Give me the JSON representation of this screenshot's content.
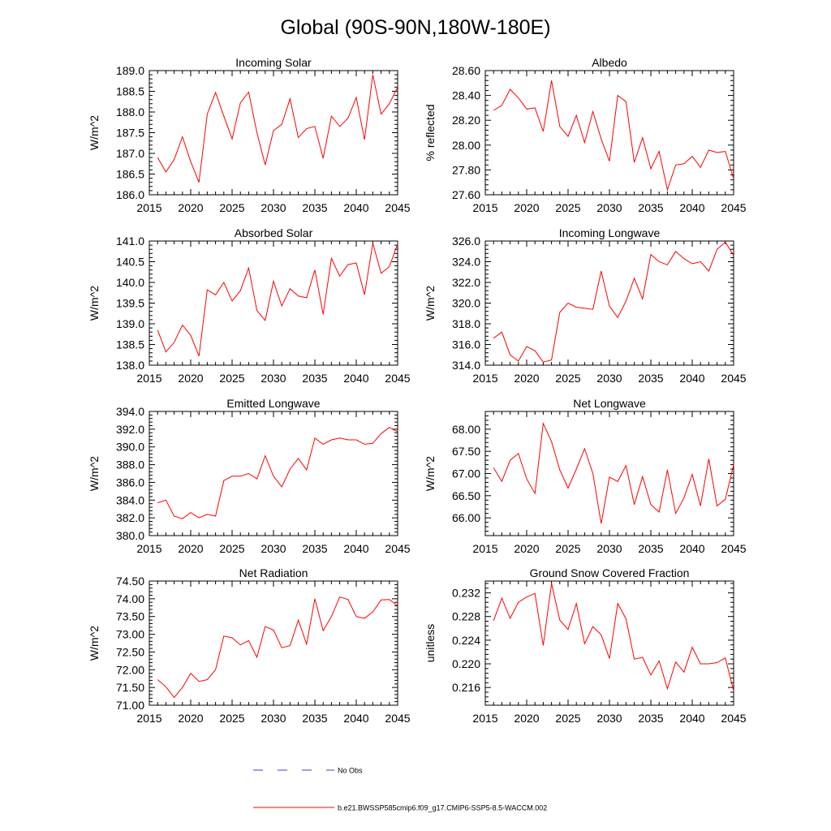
{
  "title": "Global (90S-90N,180W-180E)",
  "colors": {
    "series": "#ff0000",
    "obs": "#3b3bd6",
    "axis": "#000000"
  },
  "legend": {
    "obs_label": "No Obs",
    "model_label": "b.e21.BWSSP585cmip6.f09_g17.CMIP6-SSP5-8.5-WACCM.002"
  },
  "chart_data": [
    {
      "type": "line",
      "title": "Incoming Solar",
      "ylabel": "W/m^2",
      "xlabel": "",
      "xlim": [
        2015,
        2045
      ],
      "ylim": [
        186.0,
        189.0
      ],
      "xticks": [
        2015,
        2020,
        2025,
        2030,
        2035,
        2040,
        2045
      ],
      "yticks": [
        "186.0",
        "186.5",
        "187.0",
        "187.5",
        "188.0",
        "188.5",
        "189.0"
      ],
      "x": [
        2016,
        2017,
        2018,
        2019,
        2020,
        2021,
        2022,
        2023,
        2024,
        2025,
        2026,
        2027,
        2028,
        2029,
        2030,
        2031,
        2032,
        2033,
        2034,
        2035,
        2036,
        2037,
        2038,
        2039,
        2040,
        2041,
        2042,
        2043,
        2044,
        2045
      ],
      "series": [
        {
          "name": "b.e21.BWSSP585cmip6.f09_g17.CMIP6-SSP5-8.5-WACCM.002",
          "values": [
            186.9,
            186.55,
            186.85,
            187.4,
            186.8,
            186.3,
            187.95,
            188.47,
            187.9,
            187.35,
            188.22,
            188.48,
            187.5,
            186.72,
            187.55,
            187.7,
            188.32,
            187.38,
            187.6,
            187.65,
            186.88,
            187.9,
            187.65,
            187.85,
            188.35,
            187.33,
            188.9,
            187.95,
            188.2,
            188.6
          ]
        }
      ]
    },
    {
      "type": "line",
      "title": "Albedo",
      "ylabel": "% reflected",
      "xlabel": "",
      "xlim": [
        2015,
        2045
      ],
      "ylim": [
        27.6,
        28.6
      ],
      "xticks": [
        2015,
        2020,
        2025,
        2030,
        2035,
        2040,
        2045
      ],
      "yticks": [
        "27.60",
        "27.80",
        "28.00",
        "28.20",
        "28.40",
        "28.60"
      ],
      "x": [
        2016,
        2017,
        2018,
        2019,
        2020,
        2021,
        2022,
        2023,
        2024,
        2025,
        2026,
        2027,
        2028,
        2029,
        2030,
        2031,
        2032,
        2033,
        2034,
        2035,
        2036,
        2037,
        2038,
        2039,
        2040,
        2041,
        2042,
        2043,
        2044,
        2045
      ],
      "series": [
        {
          "name": "b.e21.BWSSP585cmip6.f09_g17.CMIP6-SSP5-8.5-WACCM.002",
          "values": [
            28.28,
            28.32,
            28.45,
            28.38,
            28.29,
            28.3,
            28.11,
            28.52,
            28.15,
            28.07,
            28.24,
            28.02,
            28.27,
            28.05,
            27.87,
            28.4,
            28.35,
            27.86,
            28.06,
            27.81,
            27.95,
            27.64,
            27.84,
            27.85,
            27.91,
            27.82,
            27.96,
            27.94,
            27.95,
            27.73
          ]
        }
      ]
    },
    {
      "type": "line",
      "title": "Absorbed Solar",
      "ylabel": "W/m^2",
      "xlabel": "",
      "xlim": [
        2015,
        2045
      ],
      "ylim": [
        138.0,
        141.0
      ],
      "xticks": [
        2015,
        2020,
        2025,
        2030,
        2035,
        2040,
        2045
      ],
      "yticks": [
        "138.0",
        "138.5",
        "139.0",
        "139.5",
        "140.0",
        "140.5",
        "141.0"
      ],
      "x": [
        2016,
        2017,
        2018,
        2019,
        2020,
        2021,
        2022,
        2023,
        2024,
        2025,
        2026,
        2027,
        2028,
        2029,
        2030,
        2031,
        2032,
        2033,
        2034,
        2035,
        2036,
        2037,
        2038,
        2039,
        2040,
        2041,
        2042,
        2043,
        2044,
        2045
      ],
      "series": [
        {
          "name": "b.e21.BWSSP585cmip6.f09_g17.CMIP6-SSP5-8.5-WACCM.002",
          "values": [
            138.85,
            138.32,
            138.55,
            138.97,
            138.72,
            138.22,
            139.82,
            139.7,
            140.0,
            139.55,
            139.8,
            140.35,
            139.32,
            139.08,
            140.03,
            139.43,
            139.85,
            139.67,
            139.63,
            140.3,
            139.23,
            140.58,
            140.15,
            140.43,
            140.47,
            139.7,
            140.95,
            140.22,
            140.38,
            140.93
          ]
        }
      ]
    },
    {
      "type": "line",
      "title": "Incoming Longwave",
      "ylabel": "W/m^2",
      "xlabel": "",
      "xlim": [
        2015,
        2045
      ],
      "ylim": [
        314.0,
        326.0
      ],
      "xticks": [
        2015,
        2020,
        2025,
        2030,
        2035,
        2040,
        2045
      ],
      "yticks": [
        "314.0",
        "316.0",
        "318.0",
        "320.0",
        "322.0",
        "324.0",
        "326.0"
      ],
      "x": [
        2016,
        2017,
        2018,
        2019,
        2020,
        2021,
        2022,
        2023,
        2024,
        2025,
        2026,
        2027,
        2028,
        2029,
        2030,
        2031,
        2032,
        2033,
        2034,
        2035,
        2036,
        2037,
        2038,
        2039,
        2040,
        2041,
        2042,
        2043,
        2044,
        2045
      ],
      "series": [
        {
          "name": "b.e21.BWSSP585cmip6.f09_g17.CMIP6-SSP5-8.5-WACCM.002",
          "values": [
            316.6,
            317.2,
            315.0,
            314.4,
            315.8,
            315.4,
            314.3,
            314.5,
            319.1,
            320.0,
            319.6,
            319.5,
            319.4,
            323.1,
            319.7,
            318.6,
            320.2,
            322.4,
            320.4,
            324.7,
            324.0,
            323.7,
            325.0,
            324.3,
            323.8,
            324.0,
            323.1,
            325.2,
            325.9,
            324.6
          ]
        }
      ]
    },
    {
      "type": "line",
      "title": "Emitted Longwave",
      "ylabel": "W/m^2",
      "xlabel": "",
      "xlim": [
        2015,
        2045
      ],
      "ylim": [
        380.0,
        394.0
      ],
      "xticks": [
        2015,
        2020,
        2025,
        2030,
        2035,
        2040,
        2045
      ],
      "yticks": [
        "380.0",
        "382.0",
        "384.0",
        "386.0",
        "388.0",
        "390.0",
        "392.0",
        "394.0"
      ],
      "x": [
        2016,
        2017,
        2018,
        2019,
        2020,
        2021,
        2022,
        2023,
        2024,
        2025,
        2026,
        2027,
        2028,
        2029,
        2030,
        2031,
        2032,
        2033,
        2034,
        2035,
        2036,
        2037,
        2038,
        2039,
        2040,
        2041,
        2042,
        2043,
        2044,
        2045
      ],
      "series": [
        {
          "name": "b.e21.BWSSP585cmip6.f09_g17.CMIP6-SSP5-8.5-WACCM.002",
          "values": [
            383.7,
            384.0,
            382.2,
            381.9,
            382.6,
            382.0,
            382.4,
            382.2,
            386.2,
            386.7,
            386.7,
            387.0,
            386.4,
            389.0,
            386.7,
            385.5,
            387.5,
            388.7,
            387.4,
            391.0,
            390.3,
            390.8,
            391.0,
            390.8,
            390.8,
            390.3,
            390.4,
            391.5,
            392.2,
            391.7
          ]
        }
      ]
    },
    {
      "type": "line",
      "title": "Net Longwave",
      "ylabel": "W/m^2",
      "xlabel": "",
      "xlim": [
        2015,
        2045
      ],
      "ylim": [
        65.6,
        68.4
      ],
      "xticks": [
        2015,
        2020,
        2025,
        2030,
        2035,
        2040,
        2045
      ],
      "yticks": [
        "66.00",
        "66.50",
        "67.00",
        "67.50",
        "68.00"
      ],
      "ytick_values": [
        66.0,
        66.5,
        67.0,
        67.5,
        68.0
      ],
      "x": [
        2016,
        2017,
        2018,
        2019,
        2020,
        2021,
        2022,
        2023,
        2024,
        2025,
        2026,
        2027,
        2028,
        2029,
        2030,
        2031,
        2032,
        2033,
        2034,
        2035,
        2036,
        2037,
        2038,
        2039,
        2040,
        2041,
        2042,
        2043,
        2044,
        2045
      ],
      "series": [
        {
          "name": "b.e21.BWSSP585cmip6.f09_g17.CMIP6-SSP5-8.5-WACCM.002",
          "values": [
            67.13,
            66.82,
            67.3,
            67.45,
            66.88,
            66.55,
            68.13,
            67.72,
            67.08,
            66.67,
            67.1,
            67.56,
            67.0,
            65.87,
            66.92,
            66.82,
            67.18,
            66.3,
            66.93,
            66.3,
            66.13,
            67.08,
            66.1,
            66.45,
            66.98,
            66.27,
            67.33,
            66.27,
            66.42,
            67.2
          ]
        }
      ]
    },
    {
      "type": "line",
      "title": "Net Radiation",
      "ylabel": "W/m^2",
      "xlabel": "",
      "xlim": [
        2015,
        2045
      ],
      "ylim": [
        71.0,
        74.5
      ],
      "xticks": [
        2015,
        2020,
        2025,
        2030,
        2035,
        2040,
        2045
      ],
      "yticks": [
        "71.00",
        "71.50",
        "72.00",
        "72.50",
        "73.00",
        "73.50",
        "74.00",
        "74.50"
      ],
      "x": [
        2016,
        2017,
        2018,
        2019,
        2020,
        2021,
        2022,
        2023,
        2024,
        2025,
        2026,
        2027,
        2028,
        2029,
        2030,
        2031,
        2032,
        2033,
        2034,
        2035,
        2036,
        2037,
        2038,
        2039,
        2040,
        2041,
        2042,
        2043,
        2044,
        2045
      ],
      "series": [
        {
          "name": "b.e21.BWSSP585cmip6.f09_g17.CMIP6-SSP5-8.5-WACCM.002",
          "values": [
            71.72,
            71.52,
            71.22,
            71.5,
            71.9,
            71.67,
            71.72,
            72.0,
            72.95,
            72.9,
            72.7,
            72.82,
            72.35,
            73.22,
            73.12,
            72.62,
            72.68,
            73.4,
            72.72,
            74.0,
            73.1,
            73.5,
            74.05,
            73.98,
            73.5,
            73.45,
            73.63,
            73.97,
            73.98,
            73.8
          ]
        }
      ]
    },
    {
      "type": "line",
      "title": "Ground Snow Covered Fraction",
      "ylabel": "unitless",
      "xlabel": "",
      "xlim": [
        2015,
        2045
      ],
      "ylim": [
        0.213,
        0.234
      ],
      "xticks": [
        2015,
        2020,
        2025,
        2030,
        2035,
        2040,
        2045
      ],
      "yticks": [
        "0.216",
        "0.220",
        "0.224",
        "0.228",
        "0.232"
      ],
      "ytick_values": [
        0.216,
        0.22,
        0.224,
        0.228,
        0.232
      ],
      "x": [
        2016,
        2017,
        2018,
        2019,
        2020,
        2021,
        2022,
        2023,
        2024,
        2025,
        2026,
        2027,
        2028,
        2029,
        2030,
        2031,
        2032,
        2033,
        2034,
        2035,
        2036,
        2037,
        2038,
        2039,
        2040,
        2041,
        2042,
        2043,
        2044,
        2045
      ],
      "series": [
        {
          "name": "b.e21.BWSSP585cmip6.f09_g17.CMIP6-SSP5-8.5-WACCM.002",
          "values": [
            0.2273,
            0.2311,
            0.2277,
            0.2304,
            0.2313,
            0.2319,
            0.2231,
            0.2336,
            0.2274,
            0.2258,
            0.2302,
            0.2234,
            0.2263,
            0.2249,
            0.2209,
            0.2302,
            0.2276,
            0.2208,
            0.2211,
            0.2181,
            0.2205,
            0.2158,
            0.2203,
            0.2186,
            0.2228,
            0.22,
            0.22,
            0.2202,
            0.221,
            0.2154
          ]
        }
      ]
    }
  ]
}
